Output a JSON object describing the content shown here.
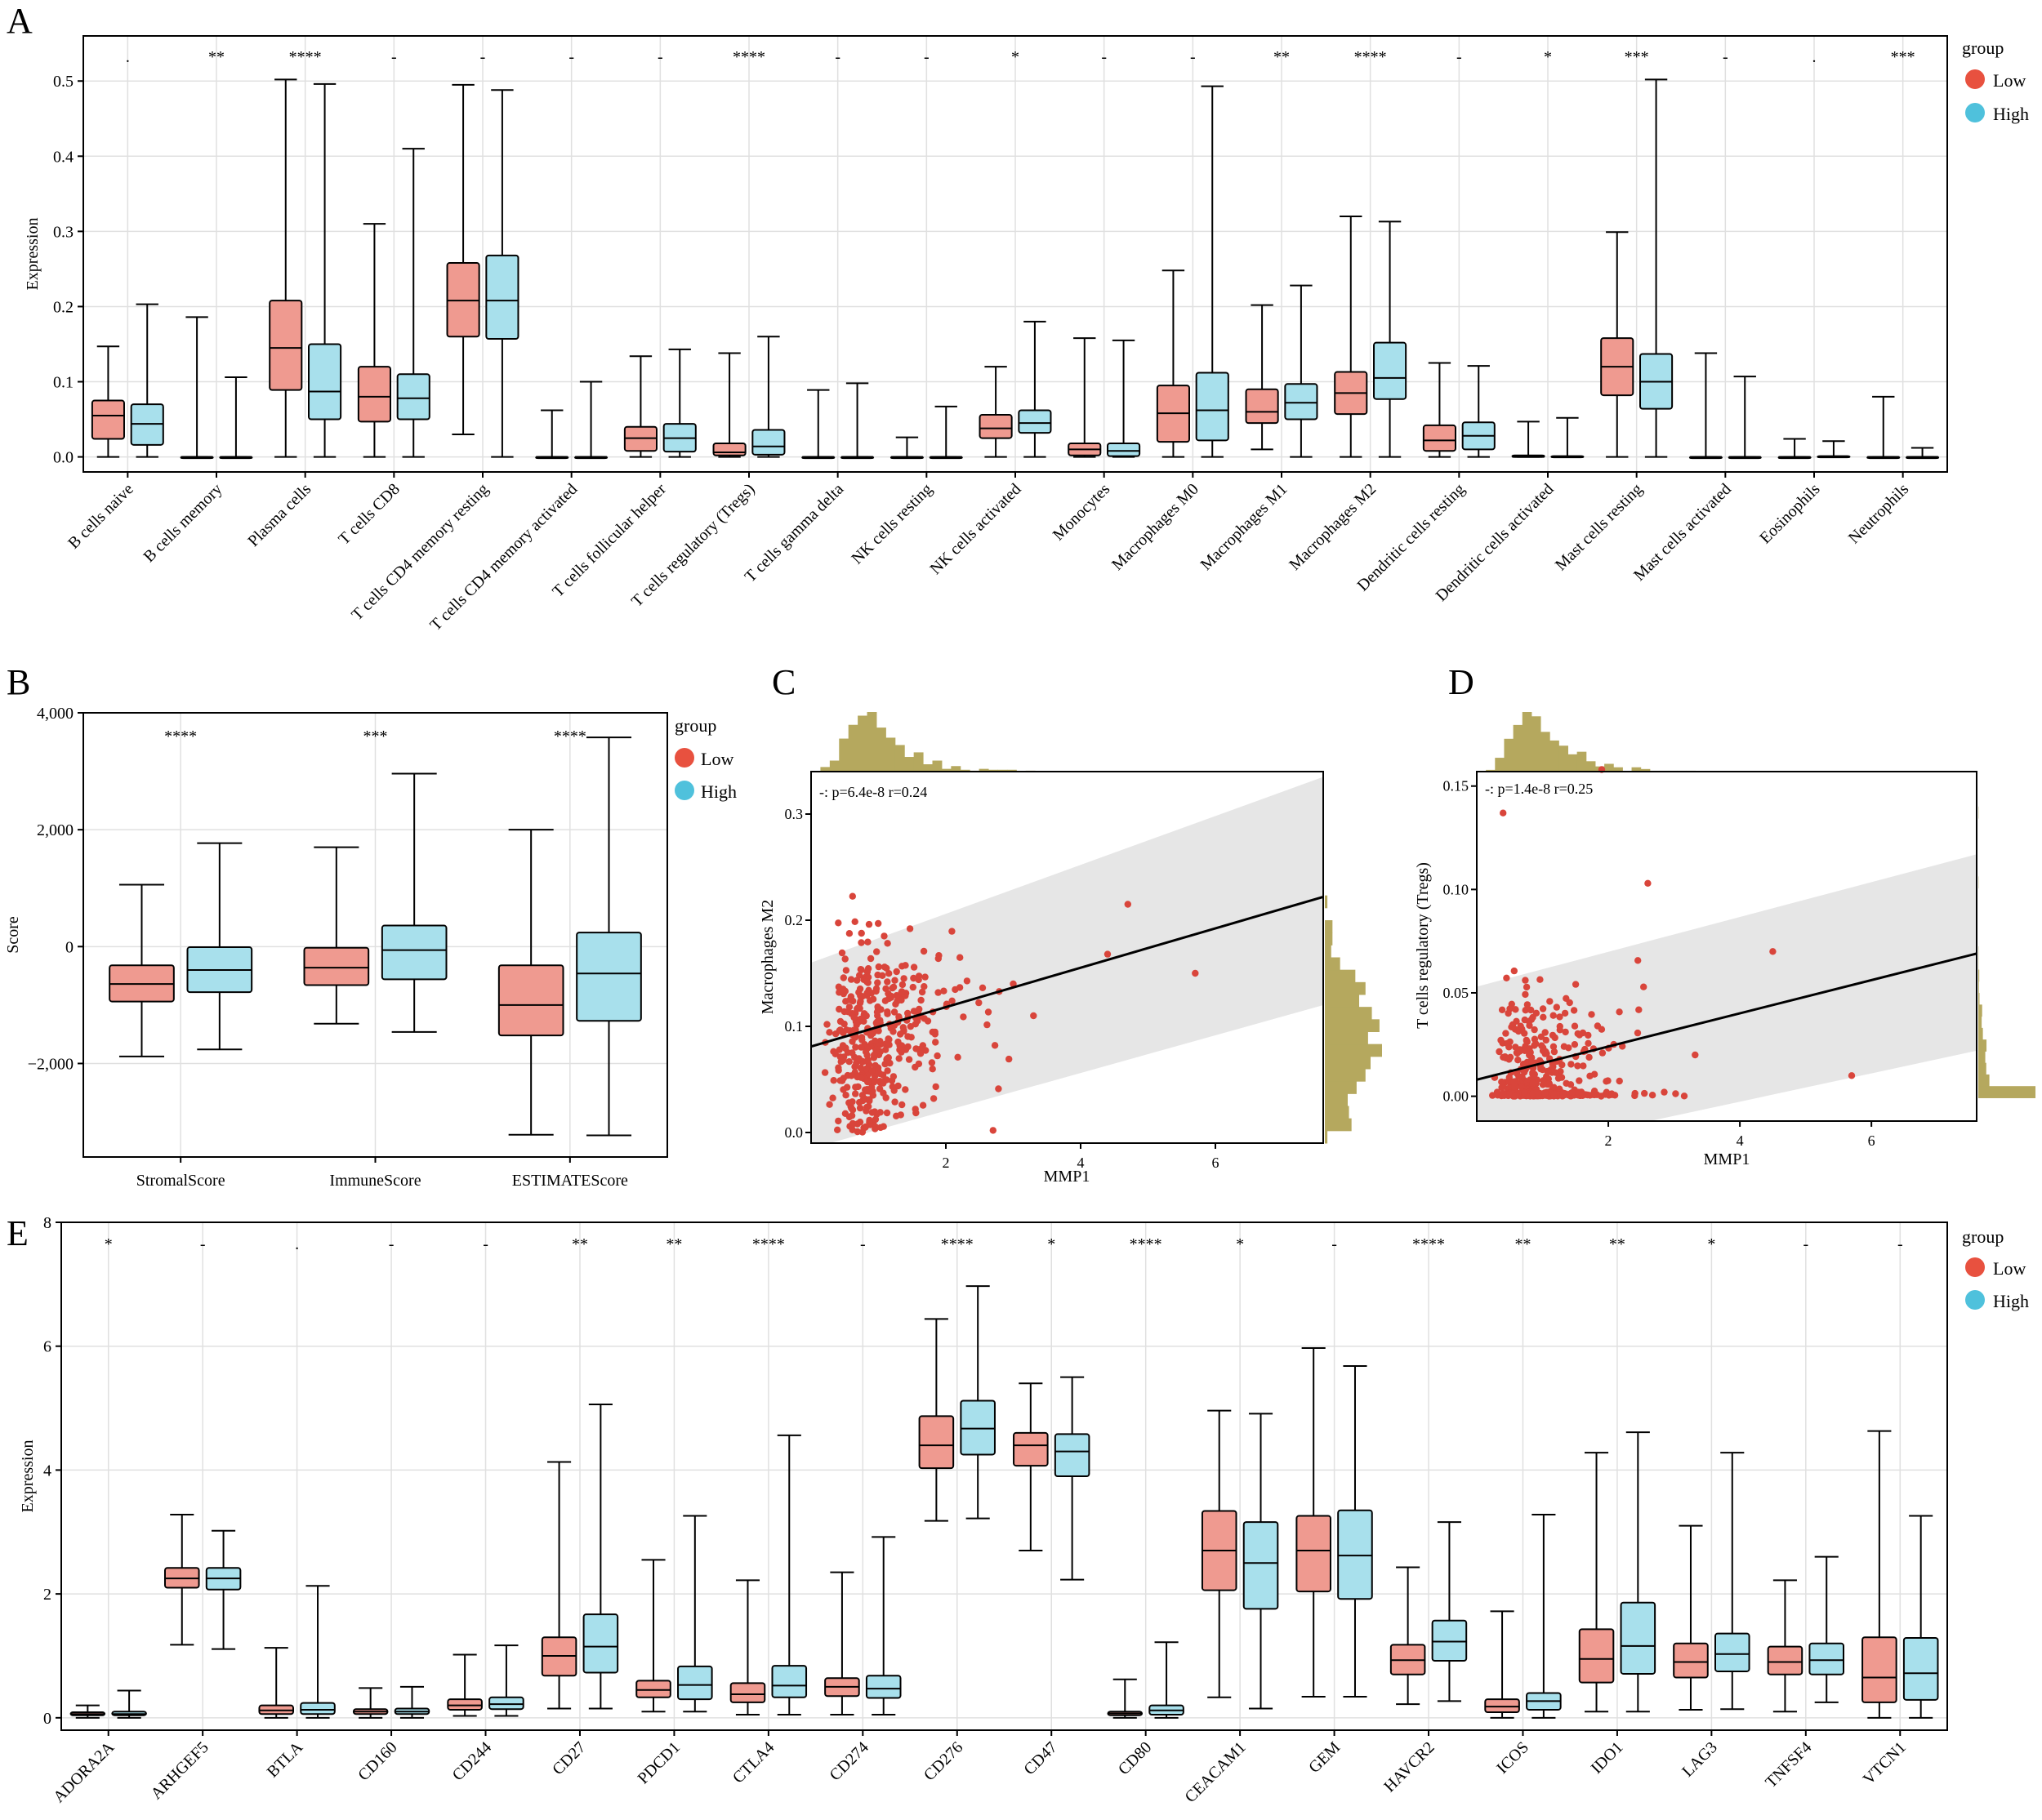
{
  "colors": {
    "low": "#ef9a90",
    "high": "#a8e0ec",
    "low_legend": "#e8513f",
    "high_legend": "#4fc1dc",
    "scatter": "#d9453b",
    "hist": "#b5a85e",
    "grid": "#e0e0e0",
    "band": "#e6e6e6"
  },
  "legend": {
    "title": "group",
    "low": "Low",
    "high": "High"
  },
  "panelA": {
    "letter": "A",
    "ylabel": "Expression",
    "yticks": [
      "0.0",
      "0.1",
      "0.2",
      "0.3",
      "0.4",
      "0.5"
    ]
  },
  "panelB": {
    "letter": "B",
    "ylabel": "Score",
    "yticks": [
      "−2,000",
      "0",
      "2,000",
      "4,000"
    ]
  },
  "panelC": {
    "letter": "C",
    "ylabel": "Macrophages M2",
    "xlabel": "MMP1",
    "annotation": "-: p=6.4e-8 r=0.24",
    "xticks": [
      "2",
      "4",
      "6"
    ],
    "yticks": [
      "0.0",
      "0.1",
      "0.2",
      "0.3"
    ]
  },
  "panelD": {
    "letter": "D",
    "ylabel": "T cells regulatory (Tregs)",
    "xlabel": "MMP1",
    "annotation": "-: p=1.4e-8 r=0.25",
    "xticks": [
      "2",
      "4",
      "6"
    ],
    "yticks": [
      "0.00",
      "0.05",
      "0.10",
      "0.15"
    ]
  },
  "panelE": {
    "letter": "E",
    "ylabel": "Expression",
    "yticks": [
      "0",
      "2",
      "4",
      "6",
      "8"
    ]
  },
  "chart_data": [
    {
      "id": "A",
      "type": "box",
      "ylabel": "Expression",
      "ylim": [
        -0.02,
        0.56
      ],
      "categories": [
        "B cells naive",
        "B cells memory",
        "Plasma cells",
        "T cells CD8",
        "T cells CD4 memory resting",
        "T cells CD4 memory activated",
        "T cells follicular helper",
        "T cells regulatory (Tregs)",
        "T cells gamma delta",
        "NK cells resting",
        "NK cells activated",
        "Monocytes",
        "Macrophages M0",
        "Macrophages M1",
        "Macrophages M2",
        "Dendritic cells resting",
        "Dendritic cells activated",
        "Mast cells resting",
        "Mast cells activated",
        "Eosinophils",
        "Neutrophils"
      ],
      "significance": [
        ".",
        "**",
        "****",
        "-",
        "-",
        "-",
        "-",
        "****",
        "-",
        "-",
        "*",
        "-",
        "-",
        "**",
        "****",
        "-",
        "*",
        "***",
        "-",
        ".",
        "***"
      ],
      "series": [
        {
          "name": "Low",
          "boxes": [
            [
              0,
              0.024,
              0.055,
              0.075,
              0.147
            ],
            [
              0,
              0,
              0,
              0,
              0.186
            ],
            [
              0,
              0.089,
              0.145,
              0.208,
              0.502
            ],
            [
              0,
              0.047,
              0.08,
              0.12,
              0.31
            ],
            [
              0.03,
              0.16,
              0.208,
              0.258,
              0.495
            ],
            [
              0,
              0,
              0,
              0,
              0.062
            ],
            [
              0,
              0.008,
              0.025,
              0.04,
              0.134
            ],
            [
              0,
              0.002,
              0.006,
              0.018,
              0.138
            ],
            [
              0,
              0,
              0,
              0,
              0.089
            ],
            [
              0,
              0,
              0,
              0,
              0.026
            ],
            [
              0,
              0.025,
              0.038,
              0.056,
              0.12
            ],
            [
              0,
              0.002,
              0.01,
              0.018,
              0.158
            ],
            [
              0,
              0.02,
              0.058,
              0.095,
              0.248
            ],
            [
              0.01,
              0.045,
              0.06,
              0.09,
              0.202
            ],
            [
              0,
              0.057,
              0.085,
              0.113,
              0.32
            ],
            [
              0,
              0.008,
              0.022,
              0.042,
              0.125
            ],
            [
              0,
              0,
              0,
              0.002,
              0.047
            ],
            [
              0,
              0.082,
              0.12,
              0.158,
              0.299
            ],
            [
              0,
              0,
              0,
              0,
              0.138
            ],
            [
              0,
              0,
              0,
              0,
              0.024
            ],
            [
              0,
              0,
              0,
              0,
              0.08
            ]
          ]
        },
        {
          "name": "High",
          "boxes": [
            [
              0,
              0.016,
              0.044,
              0.07,
              0.203
            ],
            [
              0,
              0,
              0,
              0,
              0.106
            ],
            [
              0,
              0.05,
              0.087,
              0.15,
              0.496
            ],
            [
              0,
              0.05,
              0.078,
              0.11,
              0.41
            ],
            [
              0,
              0.157,
              0.208,
              0.268,
              0.488
            ],
            [
              0,
              0,
              0,
              0,
              0.1
            ],
            [
              0,
              0.007,
              0.025,
              0.044,
              0.143
            ],
            [
              0,
              0.003,
              0.014,
              0.036,
              0.16
            ],
            [
              0,
              0,
              0,
              0,
              0.098
            ],
            [
              0,
              0,
              0,
              0,
              0.067
            ],
            [
              0,
              0.032,
              0.045,
              0.062,
              0.18
            ],
            [
              0,
              0.001,
              0.008,
              0.018,
              0.155
            ],
            [
              0,
              0.022,
              0.062,
              0.112,
              0.493
            ],
            [
              0,
              0.05,
              0.072,
              0.097,
              0.228
            ],
            [
              0,
              0.077,
              0.105,
              0.152,
              0.313
            ],
            [
              0,
              0.01,
              0.028,
              0.046,
              0.121
            ],
            [
              0,
              0,
              0,
              0.001,
              0.052
            ],
            [
              0,
              0.064,
              0.1,
              0.137,
              0.502
            ],
            [
              0,
              0,
              0,
              0,
              0.107
            ],
            [
              0,
              0,
              0,
              0.001,
              0.021
            ],
            [
              0,
              0,
              0,
              0,
              0.012
            ]
          ]
        }
      ]
    },
    {
      "id": "B",
      "type": "box",
      "ylabel": "Score",
      "ylim": [
        -3600,
        4000
      ],
      "categories": [
        "StromalScore",
        "ImmuneScore",
        "ESTIMATEScore"
      ],
      "significance": [
        "****",
        "***",
        "****"
      ],
      "series": [
        {
          "name": "Low",
          "boxes": [
            [
              -1880,
              -940,
              -640,
              -320,
              1060
            ],
            [
              -1320,
              -660,
              -360,
              -20,
              1700
            ],
            [
              -3220,
              -1520,
              -1000,
              -320,
              2000
            ]
          ]
        },
        {
          "name": "High",
          "boxes": [
            [
              -1760,
              -780,
              -400,
              -10,
              1770
            ],
            [
              -1460,
              -560,
              -60,
              360,
              2960
            ],
            [
              -3230,
              -1270,
              -460,
              240,
              3580
            ]
          ]
        }
      ]
    },
    {
      "id": "C",
      "type": "scatter",
      "xlabel": "MMP1",
      "ylabel": "Macrophages M2",
      "xlim": [
        0,
        7.6
      ],
      "ylim": [
        -0.01,
        0.34
      ],
      "annotation": "-: p=6.4e-8 r=0.24",
      "fit": {
        "x": [
          0,
          7.6
        ],
        "y": [
          0.081,
          0.222
        ],
        "band_lower": [
          -0.015,
          0.12
        ],
        "band_upper": [
          0.16,
          0.335
        ]
      }
    },
    {
      "id": "D",
      "type": "scatter",
      "xlabel": "MMP1",
      "ylabel": "T cells regulatory (Tregs)",
      "xlim": [
        0,
        7.6
      ],
      "ylim": [
        -0.012,
        0.157
      ],
      "annotation": "-: p=1.4e-8 r=0.25",
      "fit": {
        "x": [
          0,
          7.6
        ],
        "y": [
          0.008,
          0.069
        ],
        "band_lower": [
          -0.03,
          0.022
        ],
        "band_upper": [
          0.053,
          0.117
        ]
      }
    },
    {
      "id": "E",
      "type": "box",
      "ylabel": "Expression",
      "ylim": [
        -0.2,
        8
      ],
      "categories": [
        "ADORA2A",
        "ARHGEF5",
        "BTLA",
        "CD160",
        "CD244",
        "CD27",
        "PDCD1",
        "CTLA4",
        "CD274",
        "CD276",
        "CD47",
        "CD80",
        "CEACAM1",
        "GEM",
        "HAVCR2",
        "ICOS",
        "IDO1",
        "LAG3",
        "TNFSF4",
        "VTCN1"
      ],
      "significance": [
        "*",
        "-",
        ".",
        "-",
        "-",
        "**",
        "**",
        "****",
        "-",
        "****",
        "*",
        "****",
        "*",
        "-",
        "****",
        "**",
        "**",
        "*",
        "-",
        "-"
      ],
      "series": [
        {
          "name": "Low",
          "boxes": [
            [
              0,
              0.04,
              0.06,
              0.09,
              0.2
            ],
            [
              1.18,
              2.1,
              2.25,
              2.42,
              3.28
            ],
            [
              0,
              0.06,
              0.12,
              0.2,
              1.13
            ],
            [
              0,
              0.06,
              0.1,
              0.14,
              0.48
            ],
            [
              0.03,
              0.13,
              0.2,
              0.3,
              1.02
            ],
            [
              0.15,
              0.68,
              1.0,
              1.3,
              4.13
            ],
            [
              0.1,
              0.33,
              0.45,
              0.6,
              2.55
            ],
            [
              0.05,
              0.25,
              0.38,
              0.56,
              2.22
            ],
            [
              0.05,
              0.35,
              0.5,
              0.64,
              2.35
            ],
            [
              3.18,
              4.03,
              4.4,
              4.87,
              6.44
            ],
            [
              2.7,
              4.07,
              4.4,
              4.6,
              5.4
            ],
            [
              0,
              0.04,
              0.07,
              0.1,
              0.62
            ],
            [
              0.33,
              2.06,
              2.7,
              3.34,
              4.96
            ],
            [
              0.34,
              2.04,
              2.7,
              3.26,
              5.97
            ],
            [
              0.22,
              0.7,
              0.93,
              1.18,
              2.43
            ],
            [
              0,
              0.09,
              0.18,
              0.3,
              1.72
            ],
            [
              0.1,
              0.57,
              0.95,
              1.43,
              4.28
            ],
            [
              0.13,
              0.65,
              0.9,
              1.2,
              3.1
            ],
            [
              0.1,
              0.7,
              0.9,
              1.15,
              2.22
            ],
            [
              0,
              0.25,
              0.65,
              1.3,
              4.63
            ]
          ]
        },
        {
          "name": "High",
          "boxes": [
            [
              0,
              0.04,
              0.06,
              0.1,
              0.44
            ],
            [
              1.11,
              2.07,
              2.25,
              2.42,
              3.02
            ],
            [
              0,
              0.06,
              0.13,
              0.24,
              2.13
            ],
            [
              0,
              0.06,
              0.1,
              0.15,
              0.5
            ],
            [
              0.03,
              0.14,
              0.22,
              0.33,
              1.17
            ],
            [
              0.15,
              0.73,
              1.15,
              1.67,
              5.06
            ],
            [
              0.1,
              0.3,
              0.53,
              0.83,
              3.26
            ],
            [
              0.05,
              0.33,
              0.52,
              0.84,
              4.56
            ],
            [
              0.05,
              0.32,
              0.47,
              0.68,
              2.92
            ],
            [
              3.22,
              4.25,
              4.67,
              5.12,
              6.97
            ],
            [
              2.23,
              3.9,
              4.3,
              4.58,
              5.5
            ],
            [
              0,
              0.05,
              0.12,
              0.2,
              1.22
            ],
            [
              0.15,
              1.76,
              2.5,
              3.16,
              4.91
            ],
            [
              0.34,
              1.92,
              2.62,
              3.35,
              5.68
            ],
            [
              0.27,
              0.92,
              1.23,
              1.57,
              3.16
            ],
            [
              0,
              0.13,
              0.27,
              0.4,
              3.28
            ],
            [
              0.1,
              0.71,
              1.16,
              1.86,
              4.61
            ],
            [
              0.14,
              0.75,
              1.03,
              1.36,
              4.28
            ],
            [
              0.25,
              0.7,
              0.93,
              1.2,
              2.6
            ],
            [
              0,
              0.29,
              0.72,
              1.29,
              3.26
            ]
          ]
        }
      ]
    }
  ]
}
